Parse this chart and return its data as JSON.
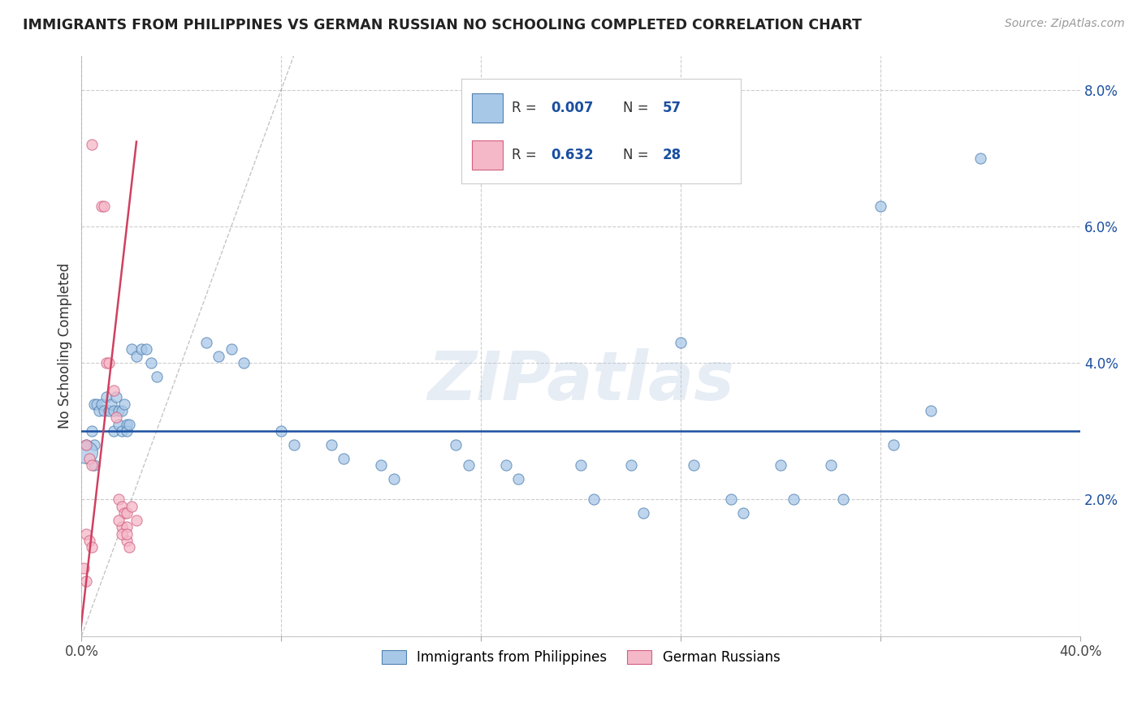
{
  "title": "IMMIGRANTS FROM PHILIPPINES VS GERMAN RUSSIAN NO SCHOOLING COMPLETED CORRELATION CHART",
  "source": "Source: ZipAtlas.com",
  "ylabel": "No Schooling Completed",
  "xlim": [
    0.0,
    0.4
  ],
  "ylim": [
    0.0,
    0.085
  ],
  "xticks": [
    0.0,
    0.08,
    0.16,
    0.24,
    0.32,
    0.4
  ],
  "xticklabels": [
    "0.0%",
    "",
    "",
    "",
    "",
    "40.0%"
  ],
  "yticks": [
    0.0,
    0.02,
    0.04,
    0.06,
    0.08
  ],
  "yticklabels": [
    "",
    "2.0%",
    "4.0%",
    "6.0%",
    "8.0%"
  ],
  "blue_color": "#a8c8e8",
  "pink_color": "#f5b8c8",
  "blue_edge_color": "#5080b0",
  "pink_edge_color": "#d06080",
  "blue_line_color": "#1a4fa0",
  "pink_line_color": "#d04060",
  "grid_color": "#cccccc",
  "watermark": "ZIPatlas",
  "legend_r_color": "#1a4fa0",
  "blue_regression_y": 0.03,
  "blue_points": [
    [
      0.005,
      0.034
    ],
    [
      0.006,
      0.034
    ],
    [
      0.007,
      0.033
    ],
    [
      0.008,
      0.034
    ],
    [
      0.009,
      0.033
    ],
    [
      0.01,
      0.035
    ],
    [
      0.011,
      0.033
    ],
    [
      0.012,
      0.034
    ],
    [
      0.013,
      0.033
    ],
    [
      0.013,
      0.03
    ],
    [
      0.014,
      0.035
    ],
    [
      0.015,
      0.033
    ],
    [
      0.015,
      0.031
    ],
    [
      0.016,
      0.033
    ],
    [
      0.016,
      0.03
    ],
    [
      0.017,
      0.034
    ],
    [
      0.018,
      0.031
    ],
    [
      0.018,
      0.03
    ],
    [
      0.019,
      0.031
    ],
    [
      0.02,
      0.042
    ],
    [
      0.022,
      0.041
    ],
    [
      0.024,
      0.042
    ],
    [
      0.026,
      0.042
    ],
    [
      0.028,
      0.04
    ],
    [
      0.03,
      0.038
    ],
    [
      0.004,
      0.03
    ],
    [
      0.005,
      0.028
    ],
    [
      0.005,
      0.025
    ],
    [
      0.002,
      0.028
    ],
    [
      0.05,
      0.043
    ],
    [
      0.055,
      0.041
    ],
    [
      0.06,
      0.042
    ],
    [
      0.065,
      0.04
    ],
    [
      0.08,
      0.03
    ],
    [
      0.085,
      0.028
    ],
    [
      0.1,
      0.028
    ],
    [
      0.105,
      0.026
    ],
    [
      0.12,
      0.025
    ],
    [
      0.125,
      0.023
    ],
    [
      0.15,
      0.028
    ],
    [
      0.155,
      0.025
    ],
    [
      0.17,
      0.025
    ],
    [
      0.175,
      0.023
    ],
    [
      0.2,
      0.025
    ],
    [
      0.205,
      0.02
    ],
    [
      0.22,
      0.025
    ],
    [
      0.225,
      0.018
    ],
    [
      0.24,
      0.043
    ],
    [
      0.245,
      0.025
    ],
    [
      0.26,
      0.02
    ],
    [
      0.265,
      0.018
    ],
    [
      0.28,
      0.025
    ],
    [
      0.285,
      0.02
    ],
    [
      0.3,
      0.025
    ],
    [
      0.305,
      0.02
    ],
    [
      0.32,
      0.063
    ],
    [
      0.325,
      0.028
    ],
    [
      0.34,
      0.033
    ],
    [
      0.36,
      0.07
    ]
  ],
  "blue_big_point": [
    0.002,
    0.027
  ],
  "blue_big_size": 400,
  "pink_points": [
    [
      0.004,
      0.072
    ],
    [
      0.008,
      0.063
    ],
    [
      0.009,
      0.063
    ],
    [
      0.01,
      0.04
    ],
    [
      0.011,
      0.04
    ],
    [
      0.013,
      0.036
    ],
    [
      0.014,
      0.032
    ],
    [
      0.015,
      0.02
    ],
    [
      0.016,
      0.019
    ],
    [
      0.016,
      0.016
    ],
    [
      0.017,
      0.018
    ],
    [
      0.018,
      0.018
    ],
    [
      0.018,
      0.016
    ],
    [
      0.018,
      0.014
    ],
    [
      0.002,
      0.028
    ],
    [
      0.003,
      0.026
    ],
    [
      0.004,
      0.025
    ],
    [
      0.002,
      0.015
    ],
    [
      0.003,
      0.014
    ],
    [
      0.004,
      0.013
    ],
    [
      0.001,
      0.01
    ],
    [
      0.002,
      0.008
    ],
    [
      0.015,
      0.017
    ],
    [
      0.016,
      0.015
    ],
    [
      0.018,
      0.015
    ],
    [
      0.019,
      0.013
    ],
    [
      0.02,
      0.019
    ],
    [
      0.022,
      0.017
    ]
  ],
  "pink_line_x": [
    0.0,
    0.021
  ],
  "pink_line_slope": 3.2,
  "pink_line_intercept": 0.002,
  "diag_line_x0": 0.0,
  "diag_line_x1": 0.085,
  "diag_line_y0": 0.0,
  "diag_line_y1": 0.085
}
